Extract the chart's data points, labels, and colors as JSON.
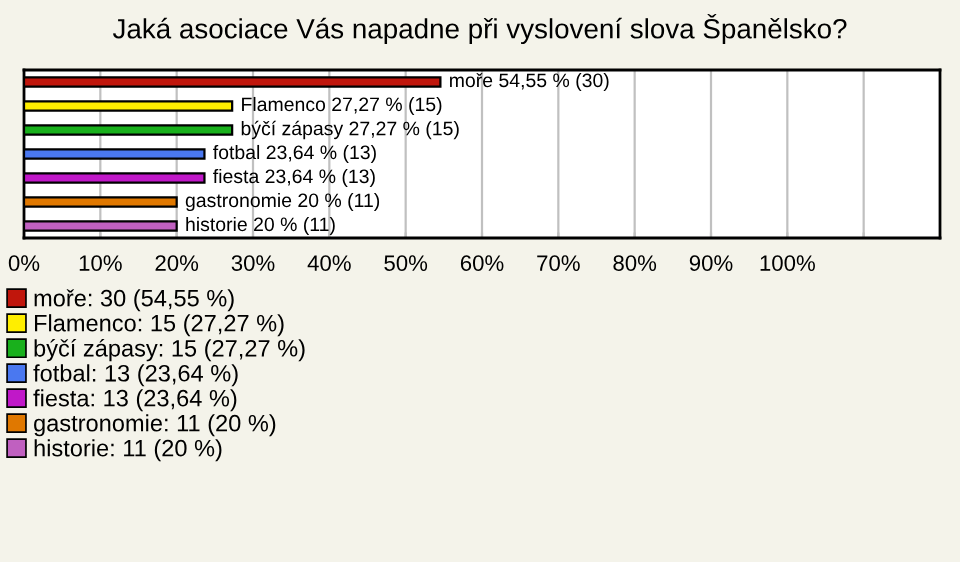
{
  "chart_data": {
    "type": "bar",
    "orientation": "horizontal",
    "title": "Jaká asociace Vás napadne při vyslovení slova Španělsko?",
    "categories": [
      null,
      null,
      null,
      null,
      null,
      null,
      null
    ],
    "series": [
      {
        "name": "moře: 30 (54,55 %)",
        "color": "#c0160c",
        "values": [
          54.55,
          null,
          null,
          null,
          null,
          null,
          null
        ],
        "value_labels": [
          "moře 54,55 % (30)",
          null,
          null,
          null,
          null,
          null,
          null
        ]
      },
      {
        "name": "Flamenco: 15 (27,27 %)",
        "color": "#ffee00",
        "values": [
          null,
          27.27,
          null,
          null,
          null,
          null,
          null
        ],
        "value_labels": [
          null,
          "Flamenco 27,27 % (15)",
          null,
          null,
          null,
          null,
          null
        ]
      },
      {
        "name": "býčí zápasy: 15 (27,27 %)",
        "color": "#19b01c",
        "values": [
          null,
          null,
          27.27,
          null,
          null,
          null,
          null
        ],
        "value_labels": [
          null,
          null,
          "býčí zápasy 27,27 % (15)",
          null,
          null,
          null,
          null
        ]
      },
      {
        "name": "fotbal: 13 (23,64 %)",
        "color": "#4a78f0",
        "values": [
          null,
          null,
          null,
          23.64,
          null,
          null,
          null
        ],
        "value_labels": [
          null,
          null,
          null,
          "fotbal 23,64 % (13)",
          null,
          null,
          null
        ]
      },
      {
        "name": "fiesta: 13 (23,64 %)",
        "color": "#c018c8",
        "values": [
          null,
          null,
          null,
          null,
          23.64,
          null,
          null
        ],
        "value_labels": [
          null,
          null,
          null,
          null,
          "fiesta 23,64 % (13)",
          null,
          null
        ]
      },
      {
        "name": "gastronomie: 11 (20 %)",
        "color": "#e07800",
        "values": [
          null,
          null,
          null,
          null,
          null,
          20,
          null
        ],
        "value_labels": [
          null,
          null,
          null,
          null,
          null,
          "gastronomie 20 % (11)",
          null
        ]
      },
      {
        "name": "historie: 11 (20 %)",
        "color": "#c060c0",
        "values": [
          null,
          null,
          null,
          null,
          null,
          null,
          20
        ],
        "value_labels": [
          null,
          null,
          null,
          null,
          null,
          null,
          "historie 20 % (11)"
        ]
      }
    ],
    "xlim": [
      0,
      120
    ],
    "xticks": [
      {
        "value": 0,
        "label": "0%"
      },
      {
        "value": 10,
        "label": "10%"
      },
      {
        "value": 20,
        "label": "20%"
      },
      {
        "value": 30,
        "label": "30%"
      },
      {
        "value": 40,
        "label": "40%"
      },
      {
        "value": 50,
        "label": "50%"
      },
      {
        "value": 60,
        "label": "60%"
      },
      {
        "value": 70,
        "label": "70%"
      },
      {
        "value": 80,
        "label": "80%"
      },
      {
        "value": 90,
        "label": "90%"
      },
      {
        "value": 100,
        "label": "100%"
      },
      {
        "value": 110,
        "label": null
      }
    ],
    "grid": "x",
    "legend": "bottom",
    "tick_labels": "x"
  }
}
